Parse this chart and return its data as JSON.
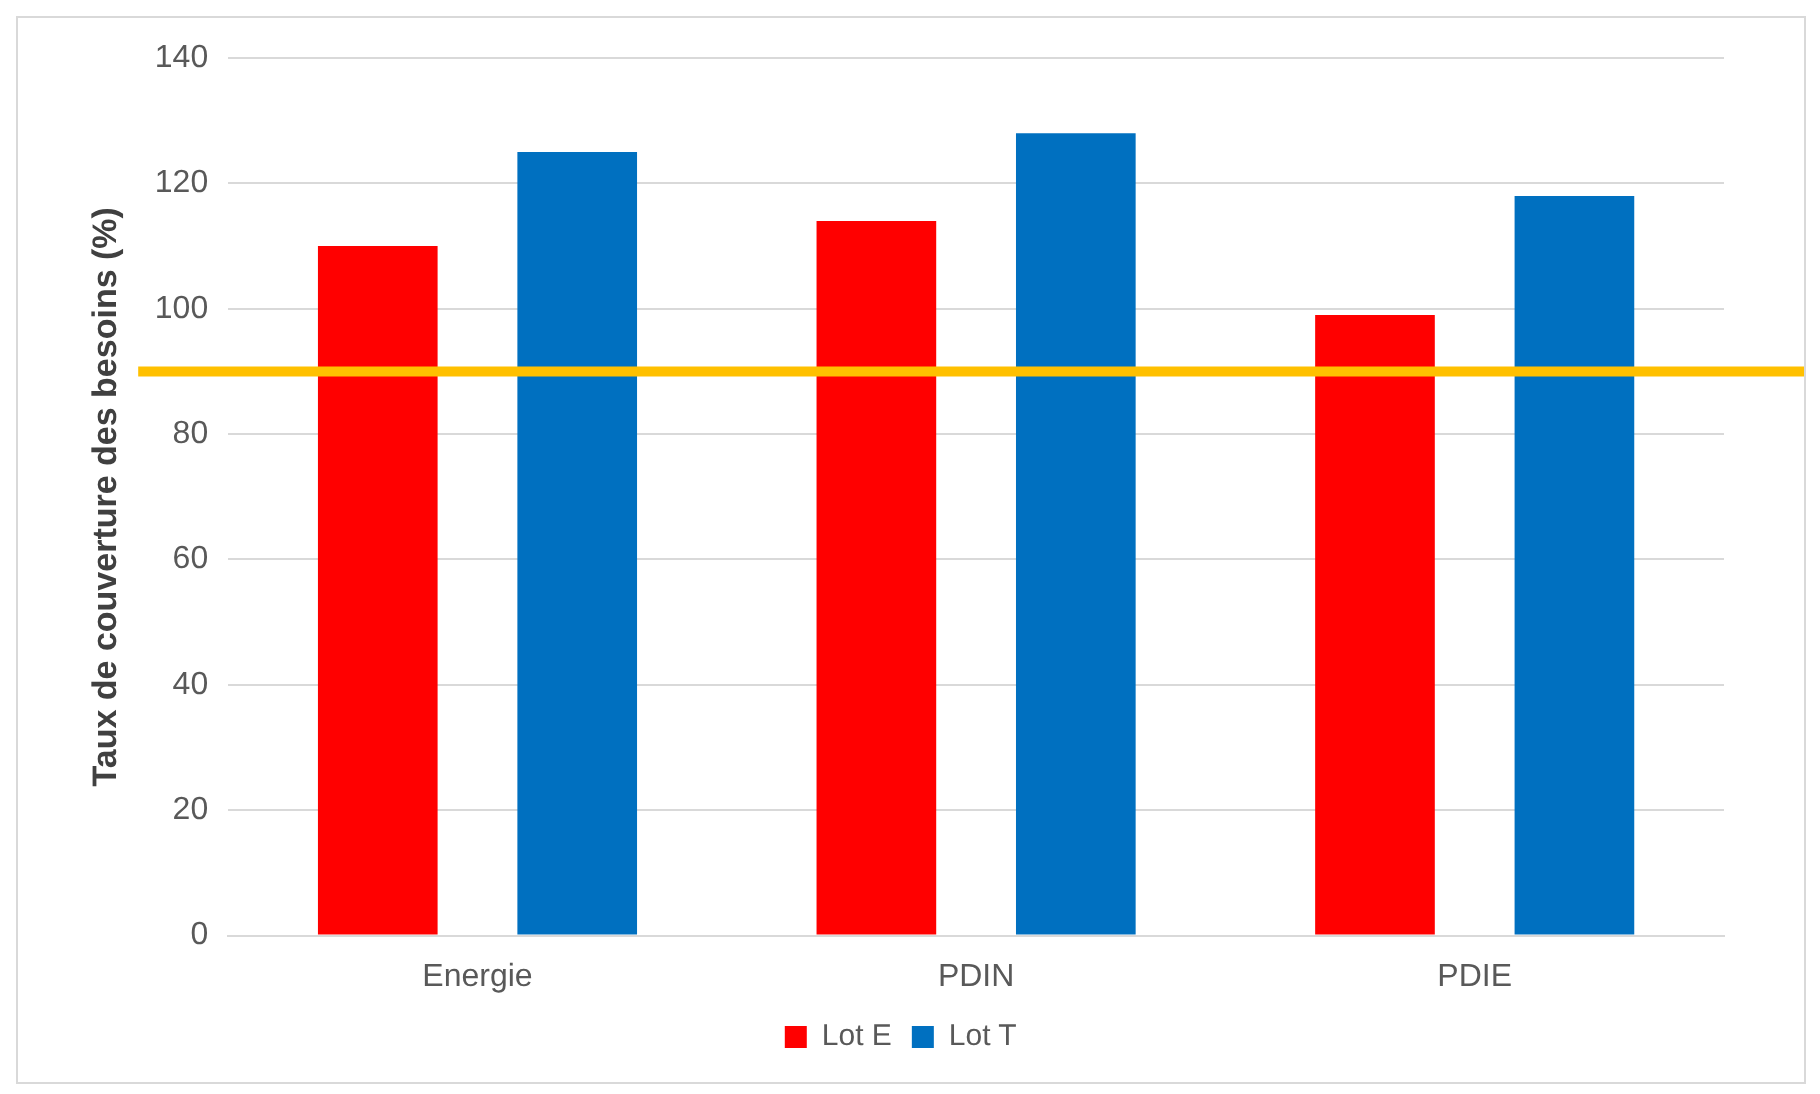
{
  "chart_data": {
    "type": "bar",
    "ylabel": "Taux de couverture des besoins (%)",
    "categories": [
      "Energie",
      "PDIN",
      "PDIE"
    ],
    "series": [
      {
        "name": "Lot E",
        "color": "#ff0000",
        "values": [
          110,
          114,
          99
        ]
      },
      {
        "name": "Lot T",
        "color": "#0070c0",
        "values": [
          125,
          128,
          118
        ]
      }
    ],
    "ylim": [
      0,
      140
    ],
    "yticks": [
      0,
      20,
      40,
      60,
      80,
      100,
      120,
      140
    ],
    "grid": "y",
    "legend": "bottom",
    "ref_lines": [
      {
        "axis": "y",
        "value": 90,
        "color": "#ffc000"
      }
    ]
  }
}
